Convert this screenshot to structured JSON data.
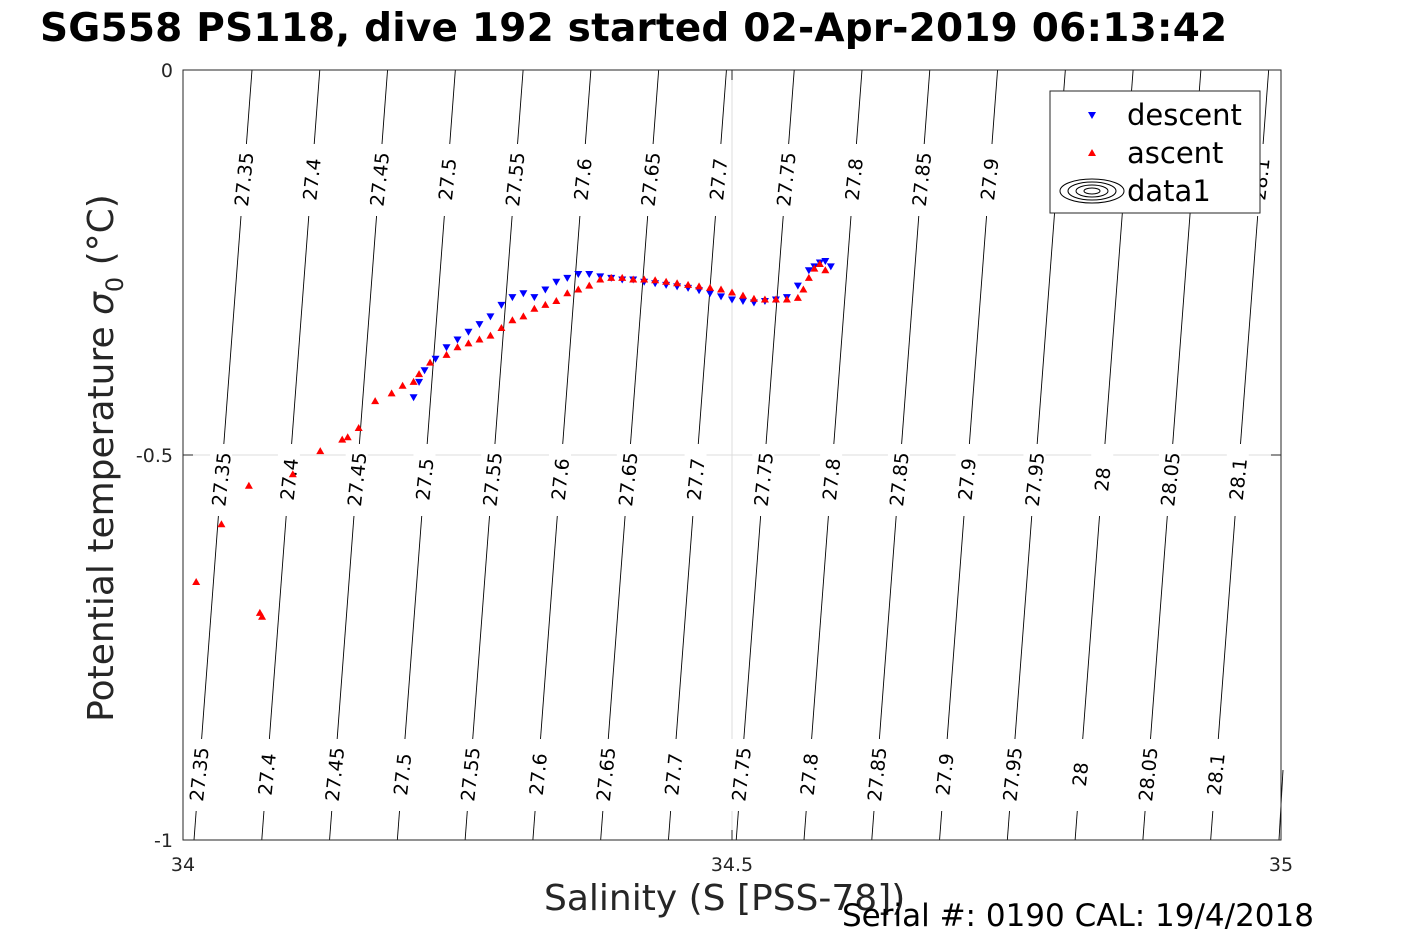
{
  "title": "SG558 PS118, dive 192 started 02-Apr-2019 06:13:42",
  "footer": "Serial #: 0190  CAL: 19/4/2018",
  "chart_data": {
    "type": "scatter",
    "title": "SG558 PS118, dive 192 started 02-Apr-2019 06:13:42",
    "xlabel": "Salinity (S [PSS-78])",
    "ylabel_main": "Potential temperature ",
    "ylabel_sigma": "σ",
    "ylabel_sub": "0",
    "ylabel_unit": " (°C)",
    "xlim": [
      34,
      35
    ],
    "ylim": [
      -1,
      0
    ],
    "xticks": [
      "34",
      "34.5",
      "35"
    ],
    "yticks": [
      "0",
      "-0.5",
      "-1"
    ],
    "grid": true,
    "legend_position": "top-right",
    "legend": [
      {
        "label": "descent",
        "marker": "triangle-down",
        "color": "#0000ff"
      },
      {
        "label": "ascent",
        "marker": "triangle-up",
        "color": "#ff0000"
      },
      {
        "label": "data1",
        "marker": "contour",
        "color": "#000000"
      }
    ],
    "contour_levels": [
      "27.35",
      "27.4",
      "27.45",
      "27.5",
      "27.55",
      "27.6",
      "27.65",
      "27.7",
      "27.75",
      "27.8",
      "27.85",
      "27.9",
      "27.95",
      "28",
      "28.05",
      "28.1"
    ],
    "contour_label_rows": {
      "top": [
        "27.35",
        "27.4",
        "27.45",
        "27.5",
        "27.55",
        "27.6",
        "27.65",
        "27.7",
        "27.75",
        "27.8",
        "27.85",
        "27.9",
        "28.1"
      ],
      "middle": [
        "27.35",
        "27.4",
        "27.45",
        "27.5",
        "27.55",
        "27.6",
        "27.65",
        "27.7",
        "27.75",
        "27.8",
        "27.85",
        "27.9",
        "27.95",
        "28",
        "28.05",
        "28.1"
      ],
      "bottom": [
        "27.35",
        "27.4",
        "27.45",
        "27.5",
        "27.55",
        "27.6",
        "27.65",
        "27.7",
        "27.75",
        "27.8",
        "27.85",
        "27.9",
        "27.95",
        "28",
        "28.05",
        "28.1"
      ]
    },
    "series": [
      {
        "name": "descent",
        "color": "#0000ff",
        "x": [
          34.21,
          34.215,
          34.22,
          34.23,
          34.24,
          34.25,
          34.26,
          34.27,
          34.28,
          34.29,
          34.3,
          34.31,
          34.32,
          34.33,
          34.34,
          34.35,
          34.36,
          34.37,
          34.38,
          34.39,
          34.4,
          34.41,
          34.42,
          34.43,
          34.44,
          34.45,
          34.46,
          34.47,
          34.48,
          34.49,
          34.5,
          34.51,
          34.52,
          34.53,
          34.54,
          34.55,
          34.56,
          34.57,
          34.575,
          34.58,
          34.585,
          34.59
        ],
        "y": [
          -0.425,
          -0.405,
          -0.39,
          -0.375,
          -0.36,
          -0.35,
          -0.34,
          -0.33,
          -0.32,
          -0.305,
          -0.295,
          -0.29,
          -0.295,
          -0.285,
          -0.275,
          -0.27,
          -0.265,
          -0.265,
          -0.268,
          -0.27,
          -0.272,
          -0.272,
          -0.275,
          -0.277,
          -0.279,
          -0.281,
          -0.283,
          -0.286,
          -0.29,
          -0.294,
          -0.298,
          -0.3,
          -0.302,
          -0.3,
          -0.298,
          -0.295,
          -0.28,
          -0.26,
          -0.255,
          -0.25,
          -0.248,
          -0.255
        ]
      },
      {
        "name": "ascent",
        "color": "#ff0000",
        "x": [
          34.012,
          34.035,
          34.06,
          34.07,
          34.072,
          34.1,
          34.125,
          34.145,
          34.15,
          34.16,
          34.175,
          34.19,
          34.2,
          34.21,
          34.215,
          34.225,
          34.24,
          34.25,
          34.26,
          34.27,
          34.28,
          34.29,
          34.3,
          34.31,
          34.32,
          34.33,
          34.34,
          34.35,
          34.36,
          34.37,
          34.38,
          34.39,
          34.4,
          34.41,
          34.42,
          34.43,
          34.44,
          34.45,
          34.46,
          34.47,
          34.48,
          34.49,
          34.5,
          34.51,
          34.52,
          34.53,
          34.54,
          34.55,
          34.56,
          34.565,
          34.57,
          34.575,
          34.58,
          34.585
        ],
        "y": [
          -0.665,
          -0.59,
          -0.54,
          -0.705,
          -0.71,
          -0.525,
          -0.495,
          -0.48,
          -0.477,
          -0.465,
          -0.43,
          -0.42,
          -0.41,
          -0.405,
          -0.395,
          -0.38,
          -0.37,
          -0.36,
          -0.355,
          -0.35,
          -0.345,
          -0.335,
          -0.325,
          -0.32,
          -0.31,
          -0.305,
          -0.3,
          -0.29,
          -0.285,
          -0.28,
          -0.272,
          -0.27,
          -0.27,
          -0.272,
          -0.272,
          -0.273,
          -0.275,
          -0.277,
          -0.279,
          -0.281,
          -0.283,
          -0.285,
          -0.289,
          -0.293,
          -0.297,
          -0.298,
          -0.298,
          -0.298,
          -0.296,
          -0.285,
          -0.27,
          -0.258,
          -0.252,
          -0.26
        ]
      }
    ]
  }
}
